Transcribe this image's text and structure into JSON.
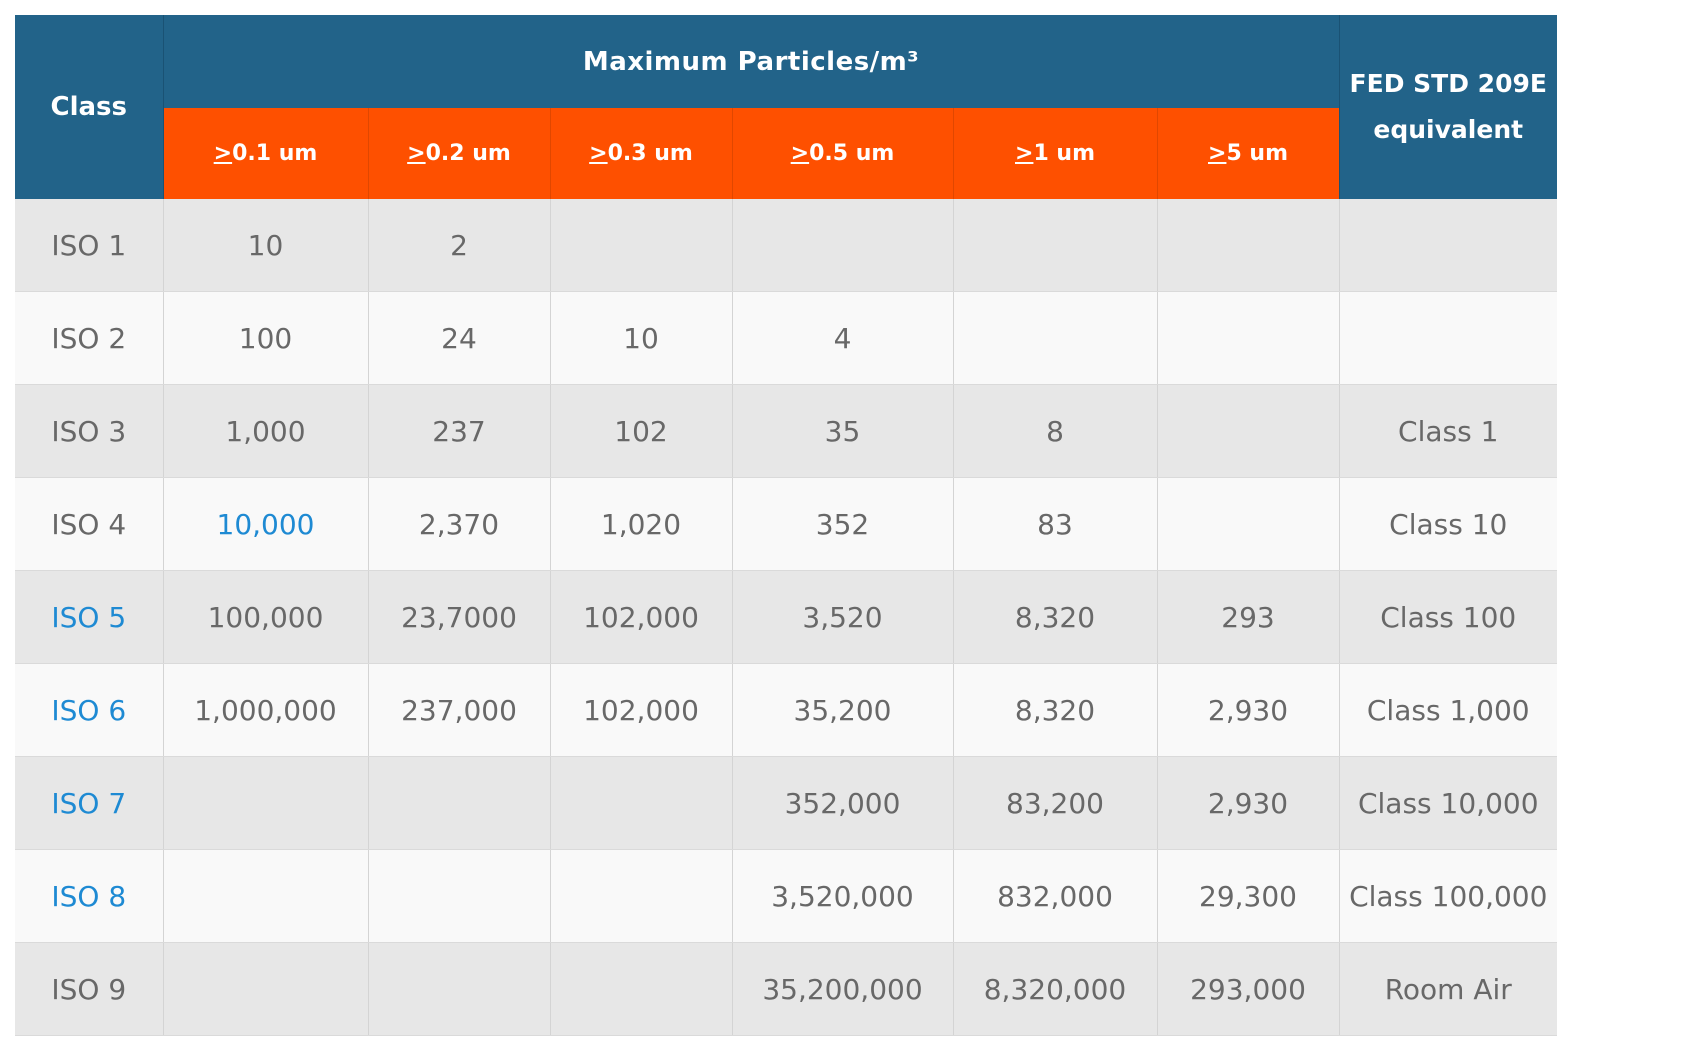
{
  "header": {
    "class_label": "Class",
    "group_title": "Maximum  Particles/m³",
    "fed_label_line1": "FED STD 209E",
    "fed_label_line2": "equivalent",
    "size_columns": [
      {
        "sym": ">",
        "rest": "0.1 um"
      },
      {
        "sym": ">",
        "rest": "0.2 um"
      },
      {
        "sym": ">",
        "rest": "0.3 um"
      },
      {
        "sym": ">",
        "rest": "0.5 um"
      },
      {
        "sym": ">",
        "rest": "1 um"
      },
      {
        "sym": ">",
        "rest": "5 um"
      }
    ]
  },
  "rows": [
    {
      "cls": "ISO 1",
      "c01": "10",
      "c02": "2",
      "c03": "",
      "c05": "",
      "c1": "",
      "c5": "",
      "fed": ""
    },
    {
      "cls": "ISO 2",
      "c01": "100",
      "c02": "24",
      "c03": "10",
      "c05": "4",
      "c1": "",
      "c5": "",
      "fed": ""
    },
    {
      "cls": "ISO 3",
      "c01": "1,000",
      "c02": "237",
      "c03": "102",
      "c05": "35",
      "c1": "8",
      "c5": "",
      "fed": "Class 1"
    },
    {
      "cls": "ISO 4",
      "c01": "10,000",
      "c02": "2,370",
      "c03": "1,020",
      "c05": "352",
      "c1": "83",
      "c5": "",
      "fed": "Class 10"
    },
    {
      "cls": "ISO 5",
      "c01": "100,000",
      "c02": "23,7000",
      "c03": "102,000",
      "c05": "3,520",
      "c1": "8,320",
      "c5": "293",
      "fed": "Class 100"
    },
    {
      "cls": "ISO 6",
      "c01": "1,000,000",
      "c02": "237,000",
      "c03": "102,000",
      "c05": "35,200",
      "c1": "8,320",
      "c5": "2,930",
      "fed": "Class 1,000"
    },
    {
      "cls": "ISO 7",
      "c01": "",
      "c02": "",
      "c03": "",
      "c05": "352,000",
      "c1": "83,200",
      "c5": "2,930",
      "fed": "Class 10,000"
    },
    {
      "cls": "ISO 8",
      "c01": "",
      "c02": "",
      "c03": "",
      "c05": "3,520,000",
      "c1": "832,000",
      "c5": "29,300",
      "fed": "Class 100,000"
    },
    {
      "cls": "ISO 9",
      "c01": "",
      "c02": "",
      "c03": "",
      "c05": "35,200,000",
      "c1": "8,320,000",
      "c5": "293,000",
      "fed": "Room Air"
    }
  ],
  "colors": {
    "header_blue": "#226389",
    "header_orange": "#fe5000",
    "link_blue": "#1e8ad3",
    "row_odd": "#e7e7e7",
    "row_even": "#f9f9f9",
    "text_gray": "#686868"
  }
}
